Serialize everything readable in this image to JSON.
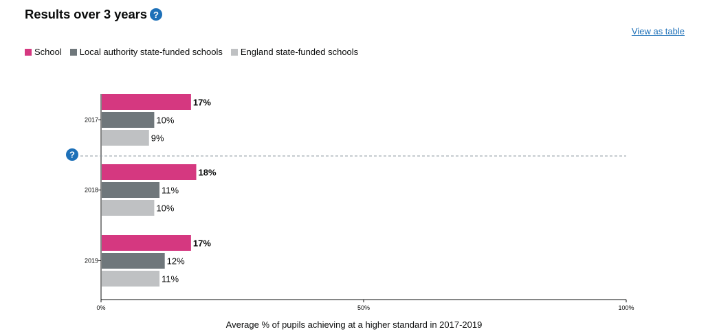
{
  "header": {
    "title": "Results over 3 years",
    "help_icon": "question-circle-icon",
    "view_as_table": "View as table"
  },
  "colors": {
    "school": "#d53880",
    "local_authority": "#6f777b",
    "england": "#bfc1c3",
    "link": "#1d70b8"
  },
  "chart_data": {
    "type": "bar",
    "orientation": "horizontal",
    "categories": [
      "2017",
      "2018",
      "2019"
    ],
    "series": [
      {
        "name": "School",
        "values": [
          17,
          18,
          17
        ],
        "labels": [
          "17%",
          "18%",
          "17%"
        ],
        "bold_labels": true
      },
      {
        "name": "Local authority state-funded schools",
        "values": [
          10,
          11,
          12
        ],
        "labels": [
          "10%",
          "11%",
          "12%"
        ],
        "bold_labels": false
      },
      {
        "name": "England state-funded schools",
        "values": [
          9,
          10,
          11
        ],
        "labels": [
          "9%",
          "10%",
          "11%"
        ],
        "bold_labels": false
      }
    ],
    "xlim": [
      0,
      100
    ],
    "x_ticks": [
      "0%",
      "50%",
      "100%"
    ],
    "xlabel": "Average % of pupils achieving at a higher standard in 2017-2019",
    "legend_position": "top-left",
    "divider": "dashed line between 2017 and 2018"
  }
}
